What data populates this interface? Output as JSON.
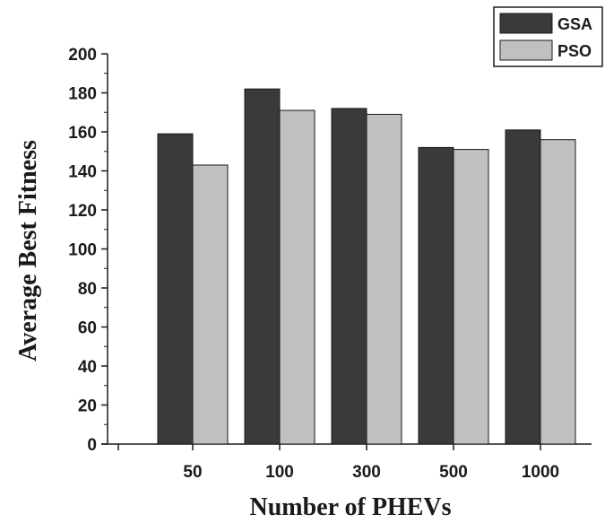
{
  "chart_data": {
    "type": "bar",
    "categories": [
      "50",
      "100",
      "300",
      "500",
      "1000"
    ],
    "series": [
      {
        "name": "GSA",
        "color": "#3a3a3a",
        "values": [
          159,
          182,
          172,
          152,
          161
        ]
      },
      {
        "name": "PSO",
        "color": "#c0c0c0",
        "values": [
          143,
          171,
          169,
          151,
          156
        ]
      }
    ],
    "xlabel": "Number of PHEVs",
    "ylabel": "Average Best Fitness",
    "ylim": [
      0,
      200
    ],
    "yticks": [
      "0",
      "20",
      "40",
      "60",
      "80",
      "100",
      "120",
      "140",
      "160",
      "180",
      "200"
    ],
    "grid": false,
    "legend_position": "top-right"
  }
}
